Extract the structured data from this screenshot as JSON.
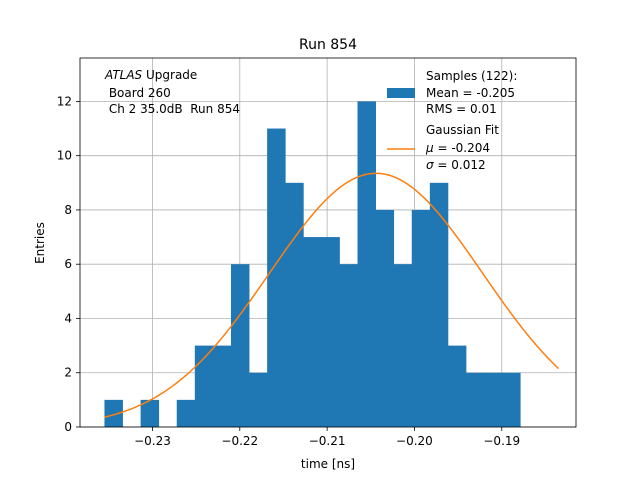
{
  "chart_data": {
    "type": "bar",
    "title": "Run 854",
    "xlabel": "time [ns]",
    "ylabel": "Entries",
    "xlim": [
      -0.2383,
      -0.1815
    ],
    "ylim": [
      0,
      13.6
    ],
    "grid": true,
    "x_ticks": [
      -0.23,
      -0.22,
      -0.21,
      -0.2,
      -0.19
    ],
    "x_tick_labels": [
      "−0.23",
      "−0.22",
      "−0.21",
      "−0.20",
      "−0.19"
    ],
    "y_ticks": [
      0,
      2,
      4,
      6,
      8,
      10,
      12
    ],
    "y_tick_labels": [
      "0",
      "2",
      "4",
      "6",
      "8",
      "10",
      "12"
    ],
    "histogram": {
      "name": "Samples (122):",
      "color": "#1f77b4",
      "bin_start": -0.2355,
      "bin_width": 0.00207,
      "counts": [
        1,
        0,
        1,
        0,
        1,
        3,
        3,
        6,
        2,
        11,
        9,
        7,
        7,
        6,
        12,
        8,
        6,
        8,
        9,
        3,
        2,
        2,
        2
      ]
    },
    "fit": {
      "name": "Gaussian Fit",
      "color": "#ff7f0e",
      "mu": -0.2044,
      "sigma": 0.0122,
      "amplitude": 9.35,
      "x_range": [
        -0.2355,
        -0.1835
      ]
    },
    "legend": {
      "samples_title": "Samples (122):",
      "samples_mean": "Mean = -0.205",
      "samples_rms": "RMS = 0.01",
      "fit_title": "Gaussian Fit",
      "fit_mu_symbol": "μ",
      "fit_mu_value": " = -0.204",
      "fit_sigma_symbol": "σ",
      "fit_sigma_value": " = 0.012",
      "placement": "top-right"
    },
    "annotation": {
      "experiment": "ATLAS",
      "line1_rest": " Upgrade",
      "line2": " Board 260",
      "line3": " Ch 2 35.0dB  Run 854"
    }
  }
}
